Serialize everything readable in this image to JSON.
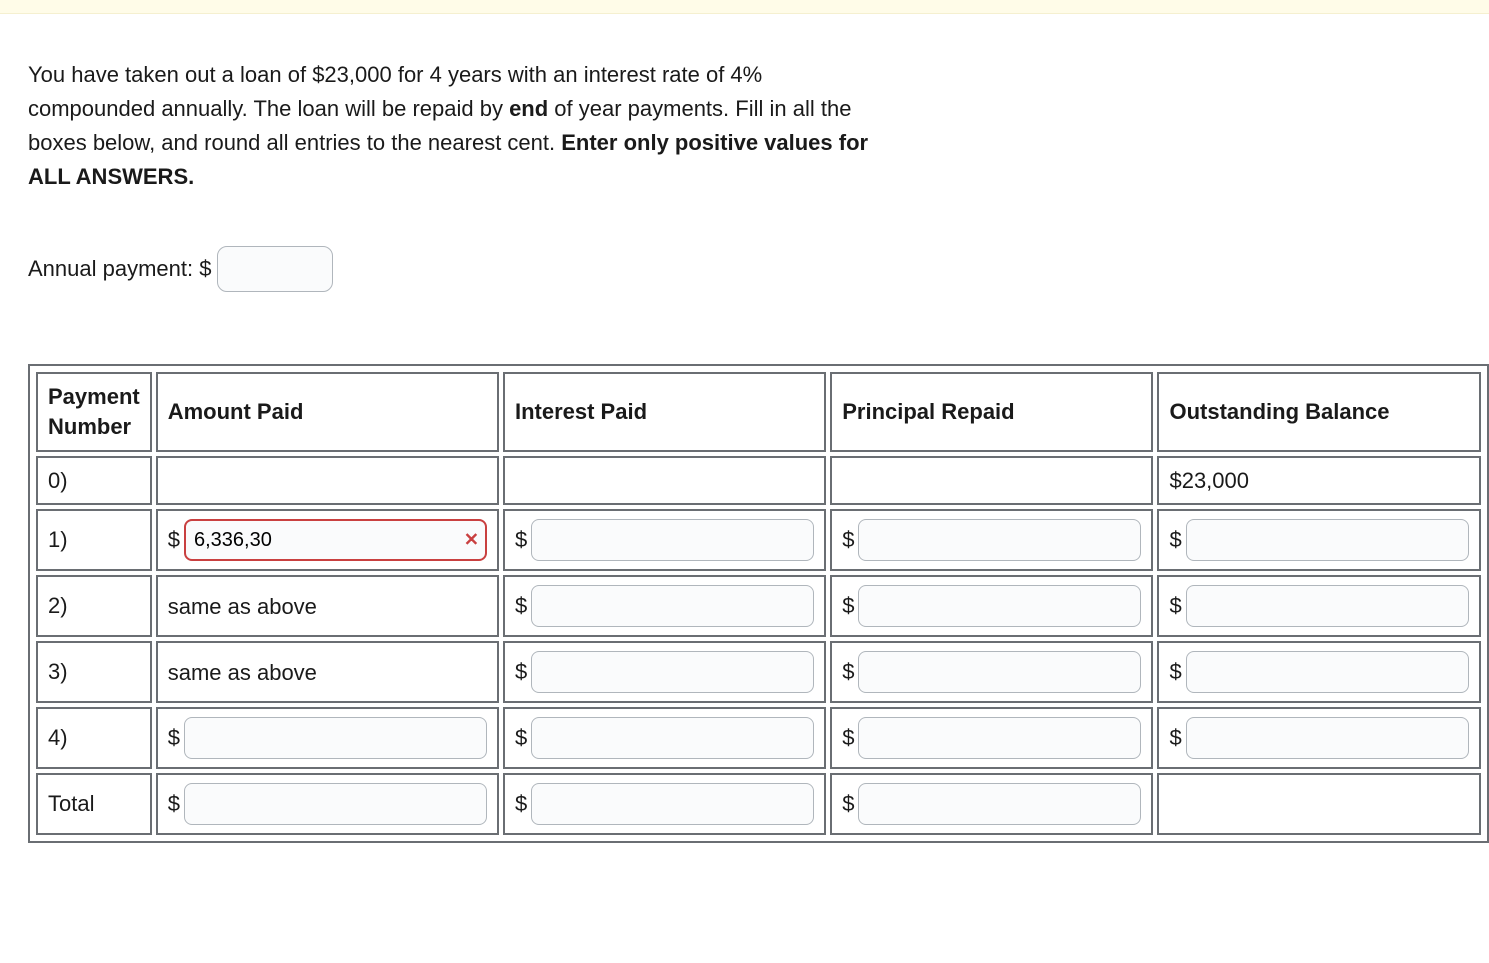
{
  "question": {
    "line1": "You have taken out a loan of $23,000 for 4 years with an interest rate of 4%",
    "line2_a": "compounded annually. The loan will be repaid by ",
    "line2_b_bold": "end",
    "line2_c": " of year payments. Fill in all the",
    "line3_a": "boxes below, and round all entries to the nearest cent. ",
    "line3_b_bold": "Enter only positive values for",
    "line4_bold": "ALL ANSWERS."
  },
  "annual_payment": {
    "label": "Annual payment: $",
    "value": ""
  },
  "table": {
    "headers": {
      "payment_number": "Payment Number",
      "amount_paid": "Amount Paid",
      "interest_paid": "Interest Paid",
      "principal_repaid": "Principal Repaid",
      "outstanding_balance": "Outstanding Balance"
    },
    "rows": [
      {
        "num": "0)",
        "amount": {
          "type": "blank"
        },
        "interest": {
          "type": "blank"
        },
        "principal": {
          "type": "blank"
        },
        "balance": {
          "type": "text",
          "value": "$23,000"
        }
      },
      {
        "num": "1)",
        "amount": {
          "type": "input_wrong",
          "prefix": "$",
          "value": "6,336,30"
        },
        "interest": {
          "type": "input",
          "prefix": "$",
          "value": ""
        },
        "principal": {
          "type": "input",
          "prefix": "$",
          "value": ""
        },
        "balance": {
          "type": "input",
          "prefix": "$",
          "value": ""
        }
      },
      {
        "num": "2)",
        "amount": {
          "type": "text",
          "value": "same as above"
        },
        "interest": {
          "type": "input",
          "prefix": "$",
          "value": ""
        },
        "principal": {
          "type": "input",
          "prefix": "$",
          "value": ""
        },
        "balance": {
          "type": "input",
          "prefix": "$",
          "value": ""
        }
      },
      {
        "num": "3)",
        "amount": {
          "type": "text",
          "value": "same as above"
        },
        "interest": {
          "type": "input",
          "prefix": "$",
          "value": ""
        },
        "principal": {
          "type": "input",
          "prefix": "$",
          "value": ""
        },
        "balance": {
          "type": "input",
          "prefix": "$",
          "value": ""
        }
      },
      {
        "num": "4)",
        "amount": {
          "type": "input",
          "prefix": "$",
          "value": ""
        },
        "interest": {
          "type": "input",
          "prefix": "$",
          "value": ""
        },
        "principal": {
          "type": "input",
          "prefix": "$",
          "value": ""
        },
        "balance": {
          "type": "input",
          "prefix": "$",
          "value": ""
        }
      },
      {
        "num": "Total",
        "amount": {
          "type": "input",
          "prefix": "$",
          "value": ""
        },
        "interest": {
          "type": "input",
          "prefix": "$",
          "value": ""
        },
        "principal": {
          "type": "input",
          "prefix": "$",
          "value": ""
        },
        "balance": {
          "type": "blank"
        }
      }
    ]
  },
  "colors": {
    "border": "#6a6e73",
    "input_border": "#b0b6bc",
    "error": "#c94040",
    "top_strip": "#fffce8"
  }
}
